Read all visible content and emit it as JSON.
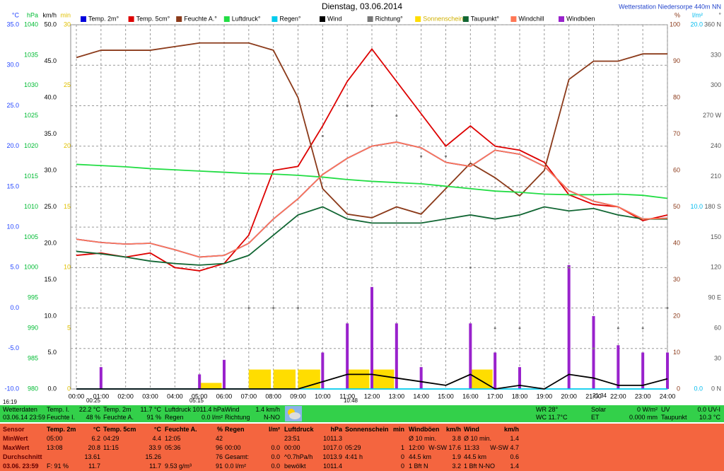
{
  "header": {
    "title": "Dienstag, 03.06.2014",
    "station": "Wetterstation Niedersorpe 440m NN"
  },
  "chart_data": {
    "type": "line",
    "xlim": [
      0,
      24
    ],
    "xticks": [
      {
        "value": 0,
        "label": "00:00"
      },
      {
        "value": 1,
        "label": "01:00"
      },
      {
        "value": 2,
        "label": "02:00"
      },
      {
        "value": 3,
        "label": "03:00"
      },
      {
        "value": 4,
        "label": "04:00"
      },
      {
        "value": 5,
        "label": "05:00"
      },
      {
        "value": 6,
        "label": "06:00"
      },
      {
        "value": 7,
        "label": "07:00"
      },
      {
        "value": 8,
        "label": "08:00"
      },
      {
        "value": 9,
        "label": "09:00"
      },
      {
        "value": 10,
        "label": "10:00"
      },
      {
        "value": 11,
        "label": "11:00"
      },
      {
        "value": 12,
        "label": "12:00"
      },
      {
        "value": 13,
        "label": "13:00"
      },
      {
        "value": 14,
        "label": "14:00"
      },
      {
        "value": 15,
        "label": "15:00"
      },
      {
        "value": 16,
        "label": "16:00"
      },
      {
        "value": 17,
        "label": "17:00"
      },
      {
        "value": 18,
        "label": "18:00"
      },
      {
        "value": 19,
        "label": "19:00"
      },
      {
        "value": 20,
        "label": "20:00"
      },
      {
        "value": 21,
        "label": "21:00"
      },
      {
        "value": 22,
        "label": "22:00"
      },
      {
        "value": 23,
        "label": "23:00"
      },
      {
        "value": 24,
        "label": "24:00"
      }
    ],
    "x": [
      0,
      1,
      2,
      3,
      4,
      5,
      6,
      7,
      8,
      9,
      10,
      11,
      12,
      13,
      14,
      15,
      16,
      17,
      18,
      19,
      20,
      21,
      22,
      23,
      24
    ],
    "grid": true,
    "axes": [
      {
        "unit": "°C",
        "side": "left",
        "color": "#2244ff",
        "ylim": [
          -10,
          35
        ],
        "grid": true,
        "yticks": [
          {
            "value": -10,
            "label": "-10.0"
          },
          {
            "value": -5,
            "label": "-5.0"
          },
          {
            "value": 0,
            "label": "0.0"
          },
          {
            "value": 5,
            "label": "5.0"
          },
          {
            "value": 10,
            "label": "10.0"
          },
          {
            "value": 15,
            "label": "15.0"
          },
          {
            "value": 20,
            "label": "20.0"
          },
          {
            "value": 25,
            "label": "25.0"
          },
          {
            "value": 30,
            "label": "30.0"
          },
          {
            "value": 35,
            "label": "35.0"
          }
        ]
      },
      {
        "unit": "hPa",
        "side": "left",
        "color": "#00bb33",
        "ylim": [
          980,
          1040
        ],
        "yticks": [
          980,
          985,
          990,
          995,
          1000,
          1005,
          1010,
          1015,
          1020,
          1025,
          1030,
          1035,
          1040
        ]
      },
      {
        "unit": "km/h",
        "side": "left",
        "color": "#000000",
        "ylim": [
          0,
          50
        ],
        "yticks": [
          {
            "value": 0,
            "label": "0.0"
          },
          {
            "value": 5,
            "label": "5.0"
          },
          {
            "value": 10,
            "label": "10.0"
          },
          {
            "value": 15,
            "label": "15.0"
          },
          {
            "value": 20,
            "label": "20.0"
          },
          {
            "value": 25,
            "label": "25.0"
          },
          {
            "value": 30,
            "label": "30.0"
          },
          {
            "value": 35,
            "label": "35.0"
          },
          {
            "value": 40,
            "label": "40.0"
          },
          {
            "value": 45,
            "label": "45.0"
          },
          {
            "value": 50,
            "label": "50.0"
          }
        ]
      },
      {
        "unit": "min",
        "side": "left",
        "color": "#e0c000",
        "ylim": [
          0,
          30
        ],
        "yticks": [
          0,
          5,
          10,
          15,
          20,
          25,
          30
        ]
      },
      {
        "unit": "%",
        "side": "right",
        "color": "#8b3a1a",
        "ylim": [
          0,
          100
        ],
        "yticks": [
          0,
          10,
          20,
          30,
          40,
          50,
          60,
          70,
          80,
          90,
          100
        ]
      },
      {
        "unit": "l/m²",
        "side": "right",
        "color": "#00bbee",
        "ylim": [
          0,
          20
        ],
        "yticks": [
          {
            "value": 0,
            "label": "0.0"
          },
          {
            "value": 10,
            "label": "10.0"
          },
          {
            "value": 20,
            "label": "20.0"
          }
        ]
      },
      {
        "unit": "°",
        "side": "right",
        "color": "#555555",
        "ylim": [
          0,
          360
        ],
        "yticks": [
          {
            "value": 0,
            "label": "0 N"
          },
          30,
          60,
          {
            "value": 90,
            "label": "90 E"
          },
          120,
          150,
          {
            "value": 180,
            "label": "180 S"
          },
          210,
          240,
          {
            "value": 270,
            "label": "270 W"
          },
          300,
          330,
          {
            "value": 360,
            "label": "360 N"
          }
        ]
      }
    ],
    "series": [
      {
        "name": "Temp. 2m°",
        "color": "#0000dd",
        "type": "line",
        "axis": 0,
        "values": [
          8.5,
          8.1,
          7.9,
          8.0,
          7.2,
          6.3,
          6.5,
          8.0,
          11.0,
          13.5,
          16.5,
          18.5,
          20.0,
          20.5,
          19.8,
          18.0,
          17.5,
          19.5,
          19.0,
          17.5,
          14.5,
          13.2,
          12.5,
          11.0,
          11.1
        ]
      },
      {
        "name": "Temp. 5cm°",
        "color": "#dd0000",
        "type": "line",
        "axis": 0,
        "values": [
          6.5,
          6.8,
          6.3,
          6.8,
          5.0,
          4.6,
          5.5,
          9.0,
          17.0,
          17.5,
          22.5,
          28.0,
          32.0,
          28.0,
          24.0,
          20.0,
          22.5,
          20.0,
          19.5,
          18.0,
          14.0,
          12.8,
          12.5,
          10.8,
          11.5
        ]
      },
      {
        "name": "Feuchte A.°",
        "color": "#8b3a1a",
        "type": "line",
        "axis": 4,
        "values": [
          91,
          93,
          93,
          93,
          94,
          95,
          95,
          95,
          93,
          80,
          55,
          48,
          47,
          50,
          48,
          55,
          62,
          58,
          53,
          60,
          85,
          90,
          90,
          92,
          92
        ]
      },
      {
        "name": "Luftdruck°",
        "color": "#22dd44",
        "type": "line",
        "axis": 1,
        "values": [
          1017.0,
          1016.8,
          1016.6,
          1016.3,
          1016.1,
          1015.9,
          1015.7,
          1015.5,
          1015.4,
          1015.2,
          1014.9,
          1014.5,
          1014.2,
          1014.0,
          1013.8,
          1013.4,
          1013.0,
          1012.6,
          1012.4,
          1012.1,
          1012.0,
          1012.0,
          1012.1,
          1011.9,
          1011.4
        ]
      },
      {
        "name": "Regen°",
        "color": "#00ccee",
        "type": "line",
        "axis": 5,
        "values": [
          0,
          0,
          0,
          0,
          0,
          0,
          0,
          0,
          0,
          0,
          0,
          0,
          0,
          0,
          0,
          0,
          0,
          0,
          0,
          0,
          0,
          0,
          0,
          0,
          0
        ]
      },
      {
        "name": "Wind",
        "color": "#000000",
        "type": "line",
        "axis": 2,
        "values": [
          0,
          0,
          0,
          0,
          0,
          0,
          0,
          0,
          0,
          0,
          1,
          2,
          2,
          1.5,
          1,
          0.5,
          2,
          0,
          0.5,
          0,
          2,
          1.5,
          0.5,
          0.5,
          1.4
        ]
      },
      {
        "name": "Richtung°",
        "color": "#777777",
        "type": "dots",
        "axis": 6,
        "values": [
          null,
          null,
          null,
          null,
          null,
          null,
          null,
          80,
          80,
          80,
          250,
          280,
          280,
          270,
          230,
          230,
          120,
          60,
          60,
          null,
          120,
          40,
          60,
          60,
          80
        ]
      },
      {
        "name": "Sonnenschein",
        "color": "#ffdd00",
        "type": "bar",
        "axis": 3,
        "values": [
          0,
          0,
          0,
          0,
          0,
          0.5,
          0,
          1.6,
          1.6,
          1.6,
          0,
          1.6,
          1.6,
          0,
          0,
          0,
          1.6,
          0,
          0,
          0,
          0,
          0,
          0,
          0,
          0
        ]
      },
      {
        "name": "Taupunkt°",
        "color": "#116633",
        "type": "line",
        "axis": 0,
        "values": [
          7.0,
          6.7,
          6.3,
          5.8,
          5.5,
          5.3,
          5.5,
          6.5,
          9.0,
          11.5,
          12.5,
          11.0,
          10.5,
          10.5,
          10.5,
          11.0,
          11.5,
          11.0,
          11.5,
          12.5,
          12.0,
          12.3,
          11.5,
          11.0,
          11.0
        ]
      },
      {
        "name": "Windchill",
        "color": "#ff7755",
        "type": "line",
        "axis": 0,
        "values": [
          8.5,
          8.1,
          7.9,
          8.0,
          7.2,
          6.3,
          6.5,
          8.0,
          11.0,
          13.5,
          16.5,
          18.5,
          20.0,
          20.5,
          19.8,
          18.0,
          17.5,
          19.5,
          19.0,
          17.5,
          14.5,
          13.2,
          12.5,
          11.0,
          11.1
        ]
      },
      {
        "name": "Windböen",
        "color": "#9922cc",
        "type": "bar",
        "axis": 2,
        "values": [
          0,
          3,
          0,
          0,
          0,
          2,
          4,
          0,
          0,
          0,
          5,
          9,
          14,
          9,
          3,
          0,
          9,
          5,
          3,
          0,
          17,
          10,
          6,
          5,
          5
        ]
      }
    ],
    "annotations": [
      "16:19",
      "00:25",
      "05:15",
      "10:48",
      "21:34"
    ]
  },
  "status": {
    "cells": [
      {
        "top": [
          "Wetterdaten"
        ],
        "bottom": [
          "03.06.14 23:59"
        ]
      },
      {
        "top": [
          "Temp. I.",
          "22.2 °C"
        ],
        "bottom": [
          "Feuchte I.",
          "48 %"
        ]
      },
      {
        "top": [
          "Temp. 2m",
          "11.7 °C"
        ],
        "bottom": [
          "Feuchte A.",
          "91 %"
        ]
      },
      {
        "top": [
          "Luftdruck 1011.4 hPa"
        ],
        "bottom": [
          "Regen",
          "0.0 l/m²"
        ]
      },
      {
        "top": [
          "Wind",
          "1.4 km/h"
        ],
        "bottom": [
          "Richtung",
          "N-NO"
        ]
      },
      {
        "top": [
          "WR 28°"
        ],
        "bottom": [
          "WC 11.7°C"
        ]
      },
      {
        "top": [
          "Solar",
          "0 W/m²"
        ],
        "bottom": [
          "ET",
          "0.000 mm"
        ]
      },
      {
        "top": [
          "UV",
          "0.0 UV-I"
        ],
        "bottom": [
          "Taupunkt",
          "10.3 °C"
        ]
      }
    ]
  },
  "table": {
    "rows": [
      [
        [
          "Sensor"
        ],
        [
          "Temp. 2m",
          "°C"
        ],
        [
          "Temp. 5cm",
          "°C"
        ],
        [
          "Feuchte A.",
          "%"
        ],
        [
          "Regen",
          "l/m²"
        ],
        [
          "Luftdruck",
          "hPa"
        ],
        [
          "Sonnenschein",
          "min"
        ],
        [
          "Windböen",
          "km/h"
        ],
        [
          "Wind",
          "km/h"
        ]
      ],
      [
        [
          "MinWert"
        ],
        [
          "05:00",
          "6.2"
        ],
        [
          "04:29",
          "4.4"
        ],
        [
          "12:05",
          "42"
        ],
        null,
        [
          "23:51",
          "1011.3"
        ],
        null,
        [
          "Ø 10 min.",
          "3.8"
        ],
        [
          "Ø 10 min.",
          "1.4"
        ]
      ],
      [
        [
          "MaxWert"
        ],
        [
          "13:08",
          "20.8"
        ],
        [
          "11:15",
          "33.9"
        ],
        [
          "05:36",
          "96"
        ],
        [
          "00:00",
          "0.0"
        ],
        [
          "00:00",
          "1017.0"
        ],
        [
          "05:29",
          "1"
        ],
        [
          "12:00",
          "W-SW 17.6"
        ],
        [
          "11:33",
          "W-SW 4.7"
        ]
      ],
      [
        [
          "Durchschnitt"
        ],
        [
          "13.61"
        ],
        [
          "15.26"
        ],
        [
          "76"
        ],
        [
          "Gesamt:",
          "0.0"
        ],
        [
          "^0.7hPa/h",
          "1013.9"
        ],
        [
          "4:41 h",
          "0"
        ],
        [
          "44.5 km",
          "1.9"
        ],
        [
          "44.5 km",
          "0.6"
        ]
      ],
      [
        [
          "03.06. 23:59"
        ],
        [
          "F: 91 %",
          "11.7"
        ],
        [
          "11.7"
        ],
        [
          "9.53 g/m³",
          "91"
        ],
        [
          "0.0 l/m²",
          "0.0"
        ],
        [
          "bewölkt",
          "1011.4"
        ],
        [
          "0"
        ],
        [
          "1 Bft N",
          "3.2"
        ],
        [
          "1 Bft N-NO",
          "1.4"
        ]
      ]
    ]
  }
}
